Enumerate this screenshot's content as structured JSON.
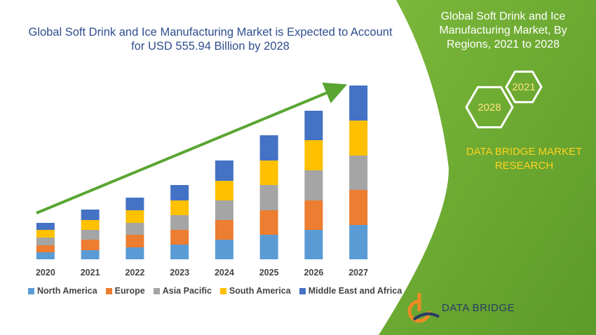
{
  "chart_data": {
    "type": "bar",
    "stacked": true,
    "title": "Global Soft Drink and Ice Manufacturing Market is Expected to Account for USD 555.94 Billion by 2028",
    "categories": [
      "2020",
      "2021",
      "2022",
      "2023",
      "2024",
      "2025",
      "2026",
      "2027"
    ],
    "series": [
      {
        "name": "North America",
        "color": "#5b9bd5",
        "values": [
          10,
          13,
          17,
          21,
          28,
          35,
          42,
          49
        ]
      },
      {
        "name": "Europe",
        "color": "#ed7d31",
        "values": [
          10,
          15,
          18,
          21,
          28,
          35,
          42,
          50
        ]
      },
      {
        "name": "Asia Pacific",
        "color": "#a5a5a5",
        "values": [
          11,
          14,
          17,
          21,
          28,
          36,
          43,
          49
        ]
      },
      {
        "name": "South America",
        "color": "#ffc000",
        "values": [
          11,
          14,
          18,
          21,
          28,
          35,
          43,
          50
        ]
      },
      {
        "name": "Middle East and Africa",
        "color": "#4472c4",
        "values": [
          10,
          15,
          18,
          22,
          29,
          36,
          42,
          50
        ]
      }
    ],
    "ylim": [
      0,
      250
    ]
  },
  "panel": {
    "title": "Global Soft Drink and Ice Manufacturing Market, By Regions, 2021 to 2028",
    "hexagons": [
      "2021",
      "2028"
    ],
    "brand": "DATA BRIDGE MARKET RESEARCH"
  },
  "logo": "DATA BRIDGE"
}
